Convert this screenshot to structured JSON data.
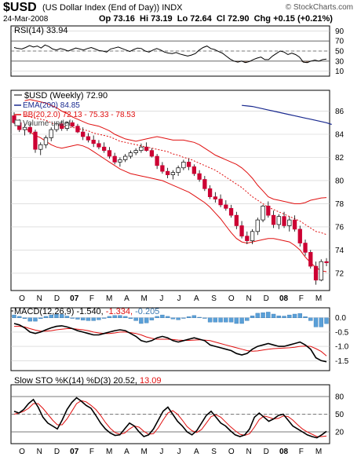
{
  "header": {
    "symbol": "$USD",
    "name": "(US Dollar Index (End of Day))",
    "exchange": "INDX",
    "date": "24-Mar-2008",
    "open_label": "Op",
    "open": "73.16",
    "high_label": "Hi",
    "high": "73.19",
    "low_label": "Lo",
    "low": "72.64",
    "close_label": "Cl",
    "close": "72.90",
    "chg_label": "Chg",
    "chg": "+0.15 (+0.21%)",
    "brand": "© StockCharts.com"
  },
  "colors": {
    "up": "#ffffff",
    "down": "#cc0033",
    "ema": "#1a2a8f",
    "bb": "#e01010",
    "rsi": "#000000",
    "macd": "#000000",
    "signal": "#e01010",
    "hist": "#5aa0d8",
    "stok": "#000000",
    "stod": "#e01010"
  },
  "x_labels": [
    "O",
    "N",
    "D",
    "07",
    "F",
    "M",
    "A",
    "M",
    "J",
    "J",
    "A",
    "S",
    "O",
    "N",
    "D",
    "08",
    "F",
    "M"
  ],
  "chart_data": [
    {
      "panel": "rsi",
      "type": "line",
      "legend": "RSI(14) 33.94",
      "series": [
        {
          "name": "RSI(14)",
          "values": [
            57,
            55,
            54,
            57,
            61,
            58,
            60,
            56,
            62,
            59,
            54,
            52,
            55,
            53,
            50,
            53,
            56,
            54,
            52,
            55,
            57,
            54,
            51,
            50,
            48,
            54,
            56,
            58,
            55,
            52,
            49,
            53,
            56,
            55,
            50,
            48,
            52,
            55,
            52,
            48,
            46,
            45,
            47,
            44,
            42,
            40,
            42,
            45,
            52,
            57,
            60,
            55,
            53,
            49,
            46,
            40,
            34,
            30,
            28,
            30,
            27,
            29,
            33,
            36,
            38,
            33,
            33,
            40,
            45,
            50,
            48,
            43,
            46,
            43,
            38,
            28,
            27,
            30,
            32,
            30,
            33,
            34
          ]
        }
      ],
      "ylim": [
        0,
        100
      ],
      "ticks": [
        10,
        30,
        50,
        70,
        90
      ],
      "tick_labels": [
        "10",
        "30",
        "50",
        "70",
        "90"
      ],
      "ref_lines": [
        30,
        50,
        70
      ]
    },
    {
      "panel": "price",
      "type": "candlestick",
      "legend": [
        "$USD (Weekly) 72.90",
        "EMA(200) 84.85",
        "BB(20,2.0) 72.13 - 75.33 - 78.53",
        "Volume undef"
      ],
      "ylim": [
        70.5,
        87.8
      ],
      "ticks": [
        72,
        74,
        76,
        78,
        80,
        82,
        84,
        86
      ],
      "tick_labels": [
        "72",
        "74",
        "76",
        "78",
        "80",
        "82",
        "84",
        "86"
      ],
      "ohlc": [
        [
          85.6,
          85.9,
          84.9,
          85.0
        ],
        [
          85.0,
          85.3,
          84.2,
          84.4
        ],
        [
          84.4,
          84.9,
          83.9,
          84.6
        ],
        [
          84.6,
          85.0,
          84.0,
          84.2
        ],
        [
          84.2,
          84.4,
          82.4,
          82.7
        ],
        [
          82.7,
          83.3,
          82.2,
          83.1
        ],
        [
          83.1,
          83.9,
          82.8,
          83.7
        ],
        [
          83.7,
          84.6,
          83.4,
          84.4
        ],
        [
          84.4,
          85.1,
          84.2,
          84.9
        ],
        [
          84.9,
          85.2,
          84.3,
          84.5
        ],
        [
          84.5,
          85.1,
          84.3,
          85.0
        ],
        [
          85.0,
          85.2,
          84.6,
          84.7
        ],
        [
          84.7,
          84.9,
          84.1,
          84.2
        ],
        [
          84.2,
          84.6,
          83.5,
          83.8
        ],
        [
          83.8,
          84.1,
          83.3,
          83.5
        ],
        [
          83.5,
          83.9,
          82.9,
          83.2
        ],
        [
          83.2,
          83.5,
          82.7,
          82.9
        ],
        [
          82.9,
          83.3,
          82.4,
          82.6
        ],
        [
          82.6,
          82.9,
          81.9,
          82.1
        ],
        [
          82.1,
          82.4,
          81.4,
          81.6
        ],
        [
          81.6,
          82.0,
          81.2,
          81.8
        ],
        [
          81.8,
          82.3,
          81.6,
          82.1
        ],
        [
          82.1,
          82.6,
          81.9,
          82.4
        ],
        [
          82.4,
          82.8,
          82.2,
          82.6
        ],
        [
          82.6,
          83.2,
          82.4,
          82.9
        ],
        [
          82.9,
          83.3,
          82.5,
          82.6
        ],
        [
          82.6,
          82.8,
          82.0,
          82.1
        ],
        [
          82.1,
          82.3,
          81.0,
          81.3
        ],
        [
          81.3,
          81.6,
          80.6,
          80.8
        ],
        [
          80.8,
          81.1,
          80.2,
          80.5
        ],
        [
          80.5,
          80.9,
          80.1,
          80.7
        ],
        [
          80.7,
          81.3,
          80.4,
          81.1
        ],
        [
          81.1,
          81.8,
          80.9,
          81.6
        ],
        [
          81.6,
          81.9,
          80.9,
          81.2
        ],
        [
          81.2,
          81.4,
          80.4,
          80.6
        ],
        [
          80.6,
          80.9,
          79.9,
          80.1
        ],
        [
          80.1,
          80.4,
          79.1,
          79.3
        ],
        [
          79.3,
          79.6,
          78.4,
          78.6
        ],
        [
          78.6,
          79.0,
          78.1,
          78.4
        ],
        [
          78.4,
          78.8,
          77.7,
          77.9
        ],
        [
          77.9,
          78.3,
          77.4,
          77.6
        ],
        [
          77.6,
          77.9,
          76.8,
          77.0
        ],
        [
          77.0,
          77.3,
          75.8,
          76.1
        ],
        [
          76.1,
          76.5,
          75.0,
          75.2
        ],
        [
          75.2,
          75.6,
          74.5,
          74.8
        ],
        [
          74.8,
          75.8,
          74.5,
          75.6
        ],
        [
          75.6,
          76.8,
          75.3,
          76.6
        ],
        [
          76.6,
          77.9,
          76.4,
          77.8
        ],
        [
          77.8,
          78.2,
          76.8,
          77.0
        ],
        [
          77.0,
          77.4,
          75.9,
          76.2
        ],
        [
          76.2,
          77.1,
          75.8,
          76.9
        ],
        [
          76.9,
          77.3,
          75.9,
          76.1
        ],
        [
          76.1,
          76.9,
          75.6,
          76.6
        ],
        [
          76.6,
          77.0,
          75.6,
          75.8
        ],
        [
          75.8,
          76.1,
          74.3,
          74.6
        ],
        [
          74.6,
          74.9,
          73.5,
          73.8
        ],
        [
          73.8,
          74.0,
          72.4,
          72.6
        ],
        [
          72.6,
          73.0,
          71.0,
          71.4
        ],
        [
          71.4,
          73.2,
          71.3,
          73.0
        ],
        [
          73.0,
          73.3,
          72.6,
          72.9
        ]
      ],
      "ema200": {
        "start": 43,
        "values": [
          86.5,
          86.45,
          86.4,
          86.3,
          86.2,
          86.1,
          86.0,
          85.9,
          85.8,
          85.7,
          85.6,
          85.5,
          85.4,
          85.3,
          85.2,
          85.1,
          85.0,
          84.85
        ]
      },
      "bb_upper": [
        86.9,
        87.0,
        86.9,
        86.8,
        86.7,
        86.5,
        86.3,
        86.0,
        85.8,
        85.5,
        85.3,
        85.1,
        84.9,
        84.8,
        84.7,
        84.5,
        84.3,
        84.0,
        83.8,
        83.6,
        83.5,
        83.4,
        83.5,
        83.6,
        83.7,
        83.8,
        83.7,
        83.6,
        83.5,
        83.5,
        83.5,
        83.4,
        83.3,
        83.1,
        82.8,
        82.5,
        82.2,
        82.0,
        81.8,
        81.6,
        81.4,
        81.1,
        80.7,
        80.2,
        79.6,
        79.1,
        78.6,
        78.4,
        78.3,
        78.2,
        78.1,
        78.0,
        78.0,
        78.1,
        78.3,
        78.4,
        78.5,
        78.53
      ],
      "bb_middle": [
        85.6,
        85.5,
        85.4,
        85.3,
        85.2,
        85.0,
        84.8,
        84.7,
        84.6,
        84.6,
        84.5,
        84.4,
        84.3,
        84.1,
        84.0,
        83.9,
        83.8,
        83.6,
        83.4,
        83.3,
        83.2,
        83.1,
        83.0,
        82.9,
        82.8,
        82.7,
        82.6,
        82.5,
        82.3,
        82.2,
        82.0,
        81.9,
        81.7,
        81.5,
        81.3,
        81.1,
        80.9,
        80.6,
        80.3,
        80.0,
        79.7,
        79.4,
        79.0,
        78.6,
        78.3,
        78.0,
        77.7,
        77.5,
        77.3,
        77.1,
        76.9,
        76.7,
        76.5,
        76.2,
        75.9,
        75.6,
        75.5,
        75.33
      ],
      "bb_lower": [
        84.6,
        84.2,
        83.9,
        83.7,
        83.4,
        83.1,
        82.9,
        82.8,
        82.9,
        83.0,
        83.1,
        83.0,
        82.8,
        82.5,
        82.2,
        81.9,
        81.6,
        81.3,
        81.0,
        80.8,
        80.6,
        80.5,
        80.4,
        80.3,
        80.2,
        80.1,
        80.0,
        79.8,
        79.6,
        79.4,
        79.2,
        79.0,
        78.7,
        78.4,
        78.1,
        77.7,
        77.2,
        76.7,
        76.1,
        75.5,
        75.0,
        74.7,
        74.6,
        74.7,
        74.8,
        74.9,
        75.0,
        75.0,
        74.9,
        74.8,
        74.7,
        74.4,
        74.0,
        73.4,
        72.9,
        72.5,
        72.2,
        72.13
      ]
    },
    {
      "panel": "macd",
      "type": "line+histogram",
      "legend_main": "MACD(12,26,9)",
      "legend_values": [
        "-1.540",
        "-1.334",
        "-0.205"
      ],
      "ylim": [
        -1.85,
        0.35
      ],
      "ticks": [
        0.0,
        -0.5,
        -1.0,
        -1.5
      ],
      "tick_labels": [
        "0.0",
        "-0.5",
        "-1.0",
        "-1.5"
      ],
      "macd": [
        -0.2,
        -0.25,
        -0.35,
        -0.5,
        -0.55,
        -0.5,
        -0.42,
        -0.35,
        -0.3,
        -0.28,
        -0.32,
        -0.38,
        -0.45,
        -0.5,
        -0.55,
        -0.6,
        -0.6,
        -0.55,
        -0.5,
        -0.45,
        -0.42,
        -0.45,
        -0.55,
        -0.65,
        -0.8,
        -0.85,
        -0.8,
        -0.7,
        -0.65,
        -0.7,
        -0.8,
        -0.85,
        -0.8,
        -0.75,
        -0.7,
        -0.75,
        -0.8,
        -0.95,
        -1.0,
        -1.05,
        -1.1,
        -1.15,
        -1.25,
        -1.3,
        -1.25,
        -1.1,
        -1.0,
        -0.95,
        -0.9,
        -0.95,
        -1.0,
        -1.0,
        -0.95,
        -0.9,
        -0.85,
        -0.95,
        -1.1,
        -1.4,
        -1.5,
        -1.54
      ],
      "signal": [
        -0.3,
        -0.3,
        -0.32,
        -0.38,
        -0.43,
        -0.47,
        -0.47,
        -0.45,
        -0.42,
        -0.4,
        -0.38,
        -0.38,
        -0.4,
        -0.42,
        -0.45,
        -0.5,
        -0.53,
        -0.55,
        -0.55,
        -0.53,
        -0.5,
        -0.5,
        -0.52,
        -0.55,
        -0.6,
        -0.67,
        -0.72,
        -0.75,
        -0.75,
        -0.75,
        -0.76,
        -0.78,
        -0.79,
        -0.79,
        -0.78,
        -0.77,
        -0.78,
        -0.8,
        -0.85,
        -0.9,
        -0.95,
        -1.0,
        -1.05,
        -1.1,
        -1.15,
        -1.17,
        -1.16,
        -1.13,
        -1.1,
        -1.08,
        -1.07,
        -1.06,
        -1.05,
        -1.03,
        -1.0,
        -0.99,
        -1.0,
        -1.08,
        -1.18,
        -1.334
      ],
      "histogram": [
        0.1,
        0.05,
        -0.03,
        -0.12,
        -0.12,
        -0.03,
        0.05,
        0.1,
        0.12,
        0.12,
        0.06,
        0.0,
        -0.05,
        -0.08,
        -0.1,
        -0.1,
        -0.07,
        0.0,
        0.05,
        0.08,
        0.08,
        0.05,
        -0.03,
        -0.1,
        -0.2,
        -0.18,
        -0.08,
        0.05,
        0.1,
        0.05,
        -0.04,
        -0.07,
        -0.01,
        0.04,
        0.08,
        0.02,
        -0.02,
        -0.15,
        -0.15,
        -0.15,
        -0.15,
        -0.15,
        -0.2,
        -0.2,
        -0.1,
        0.07,
        0.16,
        0.18,
        0.2,
        0.13,
        0.07,
        0.06,
        0.1,
        0.13,
        0.15,
        0.04,
        -0.1,
        -0.32,
        -0.32,
        -0.205
      ]
    },
    {
      "panel": "sto",
      "type": "line",
      "legend_main": "Slow STO %K(14) %D(3)",
      "legend_values": [
        "20.52",
        "13.09"
      ],
      "ylim": [
        0,
        100
      ],
      "ticks": [
        20,
        50,
        80
      ],
      "tick_labels": [
        "20",
        "50",
        "80"
      ],
      "ref_lines": [
        20,
        50,
        80
      ],
      "k": [
        55,
        52,
        58,
        68,
        75,
        62,
        45,
        35,
        30,
        25,
        40,
        58,
        70,
        78,
        72,
        65,
        60,
        48,
        35,
        25,
        18,
        14,
        15,
        25,
        35,
        30,
        20,
        12,
        15,
        25,
        40,
        55,
        62,
        50,
        38,
        30,
        20,
        15,
        22,
        35,
        48,
        55,
        45,
        35,
        30,
        22,
        15,
        12,
        15,
        25,
        45,
        52,
        45,
        38,
        42,
        48,
        50,
        40,
        30,
        25,
        20,
        15,
        12,
        10,
        15,
        21
      ],
      "d": [
        50,
        52,
        55,
        60,
        68,
        68,
        60,
        50,
        40,
        32,
        32,
        42,
        55,
        68,
        73,
        71,
        65,
        58,
        48,
        36,
        26,
        19,
        16,
        18,
        25,
        30,
        28,
        21,
        16,
        17,
        27,
        40,
        52,
        56,
        50,
        40,
        29,
        22,
        19,
        24,
        35,
        46,
        49,
        45,
        37,
        29,
        22,
        16,
        14,
        17,
        28,
        41,
        47,
        45,
        42,
        43,
        47,
        46,
        40,
        32,
        25,
        20,
        16,
        12,
        12,
        13
      ]
    }
  ]
}
